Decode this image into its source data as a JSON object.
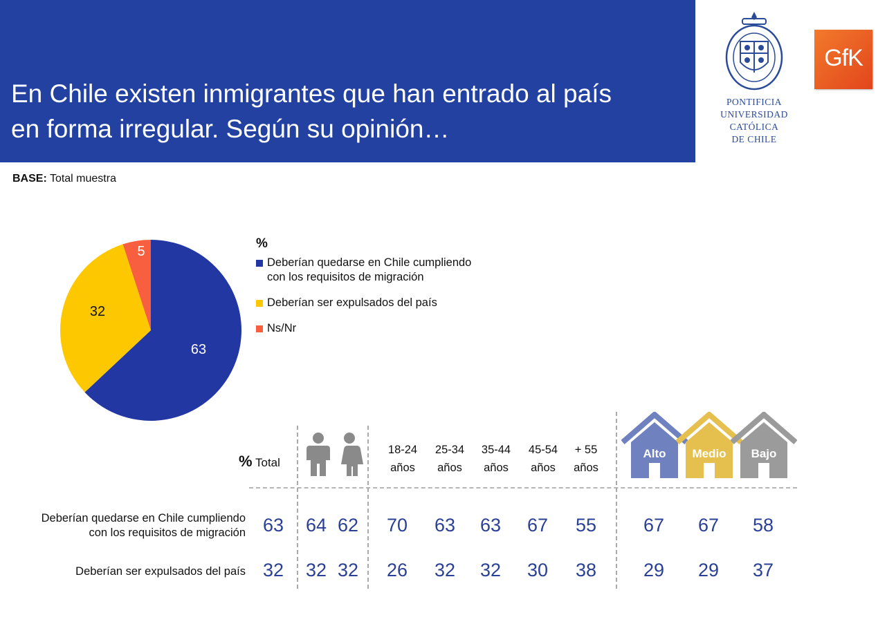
{
  "header": {
    "title_line1": "En Chile existen inmigrantes que han entrado al país",
    "title_line2": "en forma irregular. Según su opinión…"
  },
  "logos": {
    "uc_lines": [
      "PONTIFICIA",
      "UNIVERSIDAD",
      "CATÓLICA",
      "DE CHILE"
    ],
    "gfk": "GfK"
  },
  "base": {
    "label": "BASE:",
    "value": "Total muestra"
  },
  "colors": {
    "header_bg": "#2341a0",
    "blue": "#2337a3",
    "yellow": "#fec800",
    "red": "#f75f3f",
    "value_text": "#2a3f96",
    "house_alto": "#7081c0",
    "house_medio": "#e6c04f",
    "house_bajo": "#9b9b9b"
  },
  "chart_data": [
    {
      "type": "pie",
      "title": "%",
      "slices": [
        {
          "label": "Deberían quedarse en Chile cumpliendo con los requisitos de migración",
          "value": 63,
          "color": "#2337a3"
        },
        {
          "label": "Deberían ser expulsados del país",
          "value": 32,
          "color": "#fec800"
        },
        {
          "label": "Ns/Nr",
          "value": 5,
          "color": "#f75f3f"
        }
      ]
    },
    {
      "type": "table",
      "title": "%",
      "columns": [
        "Total",
        "Hombre",
        "Mujer",
        "18-24 años",
        "25-34 años",
        "35-44 años",
        "45-54 años",
        "+ 55 años",
        "Alto",
        "Medio",
        "Bajo"
      ],
      "rows": [
        {
          "label": "Deberían quedarse en Chile cumpliendo con los requisitos de migración",
          "values": [
            63,
            64,
            62,
            70,
            63,
            63,
            67,
            55,
            67,
            67,
            58
          ]
        },
        {
          "label": "Deberían ser expulsados del país",
          "values": [
            32,
            32,
            32,
            26,
            32,
            32,
            30,
            38,
            29,
            29,
            37
          ]
        }
      ]
    }
  ],
  "legend": {
    "title": "%",
    "items": [
      {
        "label_line1": "Deberían quedarse en Chile cumpliendo",
        "label_line2": "con los requisitos de migración"
      },
      {
        "label_line1": "Deberían ser expulsados del país",
        "label_line2": ""
      },
      {
        "label_line1": "Ns/Nr",
        "label_line2": ""
      }
    ]
  },
  "table": {
    "pct_symbol": "%",
    "total_label": "Total",
    "age_headers": [
      {
        "top": "18-24",
        "bottom": "años"
      },
      {
        "top": "25-34",
        "bottom": "años"
      },
      {
        "top": "35-44",
        "bottom": "años"
      },
      {
        "top": "45-54",
        "bottom": "años"
      },
      {
        "top": "+ 55",
        "bottom": "años"
      }
    ],
    "house_labels": [
      "Alto",
      "Medio",
      "Bajo"
    ],
    "row_labels": [
      {
        "line1": "Deberían quedarse en Chile cumpliendo",
        "line2": "con los requisitos de migración"
      },
      {
        "line1": "Deberían ser expulsados del país",
        "line2": ""
      }
    ]
  }
}
